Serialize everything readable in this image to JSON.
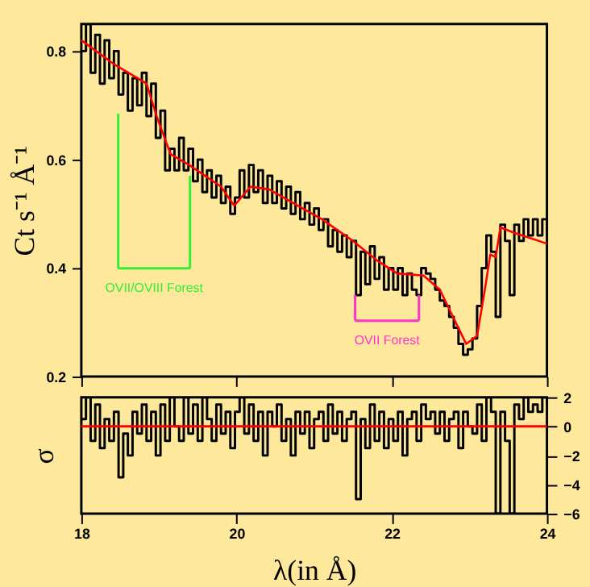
{
  "chart_data": [
    {
      "type": "line",
      "ylabel": "Ct s⁻¹ Å⁻¹",
      "xlim": [
        18,
        24
      ],
      "xticks": [
        18,
        20,
        22,
        24
      ],
      "ylim": [
        0.2,
        0.85
      ],
      "yticks": [
        0.2,
        0.4,
        0.6,
        0.8
      ],
      "tick_labels": "y",
      "grid": false,
      "series": [
        {
          "type": "step",
          "color": "#000000",
          "x": [
            18.0,
            18.06,
            18.12,
            18.18,
            18.24,
            18.3,
            18.36,
            18.42,
            18.48,
            18.54,
            18.6,
            18.66,
            18.72,
            18.78,
            18.84,
            18.9,
            18.96,
            19.02,
            19.08,
            19.14,
            19.2,
            19.26,
            19.32,
            19.38,
            19.44,
            19.5,
            19.56,
            19.62,
            19.68,
            19.74,
            19.8,
            19.86,
            19.92,
            19.98,
            20.04,
            20.1,
            20.16,
            20.22,
            20.28,
            20.34,
            20.4,
            20.46,
            20.52,
            20.58,
            20.64,
            20.7,
            20.76,
            20.82,
            20.88,
            20.94,
            21.0,
            21.06,
            21.12,
            21.18,
            21.24,
            21.3,
            21.36,
            21.42,
            21.48,
            21.54,
            21.6,
            21.66,
            21.72,
            21.78,
            21.84,
            21.9,
            21.96,
            22.02,
            22.08,
            22.14,
            22.2,
            22.26,
            22.32,
            22.38,
            22.44,
            22.5,
            22.56,
            22.62,
            22.68,
            22.74,
            22.8,
            22.86,
            22.92,
            22.98,
            23.04,
            23.1,
            23.16,
            23.22,
            23.28,
            23.34,
            23.4,
            23.46,
            23.52,
            23.58,
            23.64,
            23.7,
            23.76,
            23.82,
            23.88,
            23.94,
            24.0
          ],
          "values": [
            0.8,
            0.85,
            0.76,
            0.83,
            0.74,
            0.82,
            0.75,
            0.8,
            0.72,
            0.76,
            0.69,
            0.75,
            0.7,
            0.76,
            0.68,
            0.74,
            0.64,
            0.69,
            0.58,
            0.62,
            0.58,
            0.64,
            0.58,
            0.62,
            0.56,
            0.6,
            0.54,
            0.58,
            0.53,
            0.57,
            0.52,
            0.55,
            0.5,
            0.53,
            0.58,
            0.53,
            0.59,
            0.54,
            0.58,
            0.52,
            0.57,
            0.52,
            0.56,
            0.51,
            0.55,
            0.5,
            0.54,
            0.49,
            0.52,
            0.48,
            0.51,
            0.47,
            0.49,
            0.44,
            0.47,
            0.43,
            0.46,
            0.42,
            0.45,
            0.35,
            0.43,
            0.37,
            0.44,
            0.38,
            0.42,
            0.36,
            0.4,
            0.36,
            0.4,
            0.35,
            0.39,
            0.36,
            0.35,
            0.4,
            0.39,
            0.38,
            0.36,
            0.34,
            0.33,
            0.31,
            0.29,
            0.26,
            0.24,
            0.25,
            0.27,
            0.33,
            0.4,
            0.46,
            0.43,
            0.31,
            0.48,
            0.45,
            0.35,
            0.48,
            0.45,
            0.49,
            0.46,
            0.49,
            0.46,
            0.49,
            0.46
          ]
        },
        {
          "color": "#ff0000",
          "x": [
            18.0,
            18.43,
            18.84,
            18.98,
            19.15,
            19.39,
            19.8,
            19.97,
            20.18,
            20.42,
            21.1,
            21.5,
            21.8,
            22.07,
            22.41,
            22.62,
            22.79,
            22.96,
            23.1,
            23.2,
            23.27,
            23.34,
            23.4,
            23.58,
            24.0
          ],
          "values": [
            0.82,
            0.775,
            0.74,
            0.676,
            0.61,
            0.59,
            0.55,
            0.515,
            0.55,
            0.545,
            0.49,
            0.45,
            0.415,
            0.39,
            0.386,
            0.36,
            0.31,
            0.26,
            0.275,
            0.36,
            0.425,
            0.42,
            0.475,
            0.465,
            0.445
          ]
        }
      ],
      "annotations": [
        {
          "text": "OVII/OVIII Forest",
          "x": 19.4,
          "y": 0.57
        },
        {
          "text": "OVII Forest",
          "x": 22.35,
          "y": 0.35
        }
      ]
    },
    {
      "type": "step",
      "xlabel": "λ(in Å)",
      "ylabel": "σ",
      "xlim": [
        18,
        24
      ],
      "xticks": [
        18,
        20,
        22,
        24
      ],
      "ylim": [
        -6,
        2
      ],
      "yticks": [
        -6,
        -4,
        -2,
        0,
        2
      ],
      "grid": false,
      "series": [
        {
          "color": "#000000",
          "x": [
            18.0,
            18.06,
            18.12,
            18.18,
            18.24,
            18.3,
            18.36,
            18.42,
            18.48,
            18.54,
            18.6,
            18.66,
            18.72,
            18.78,
            18.84,
            18.9,
            18.96,
            19.02,
            19.08,
            19.14,
            19.2,
            19.26,
            19.32,
            19.38,
            19.44,
            19.5,
            19.56,
            19.62,
            19.68,
            19.74,
            19.8,
            19.86,
            19.92,
            19.98,
            20.04,
            20.1,
            20.16,
            20.22,
            20.28,
            20.34,
            20.4,
            20.46,
            20.52,
            20.58,
            20.64,
            20.7,
            20.76,
            20.82,
            20.88,
            20.94,
            21.0,
            21.06,
            21.12,
            21.18,
            21.24,
            21.3,
            21.36,
            21.42,
            21.48,
            21.54,
            21.6,
            21.66,
            21.72,
            21.78,
            21.84,
            21.9,
            21.96,
            22.02,
            22.08,
            22.14,
            22.2,
            22.26,
            22.32,
            22.38,
            22.44,
            22.5,
            22.56,
            22.62,
            22.68,
            22.74,
            22.8,
            22.86,
            22.92,
            22.98,
            23.04,
            23.1,
            23.16,
            23.22,
            23.28,
            23.34,
            23.4,
            23.46,
            23.52,
            23.58,
            23.64,
            23.7,
            23.76,
            23.82,
            23.88,
            23.94,
            24.0
          ],
          "values": [
            0.5,
            2,
            -1,
            1.5,
            -1.5,
            0.5,
            -1,
            1,
            -3.5,
            -0.5,
            -2,
            1,
            -0.5,
            1.5,
            -1,
            1,
            -2,
            1.5,
            -1,
            2,
            0,
            -1,
            2,
            -0.5,
            1.5,
            -1,
            2,
            0.5,
            -1,
            1.5,
            -0.5,
            1,
            -1.5,
            1,
            2,
            -0.5,
            1.5,
            -1,
            1,
            -2,
            1,
            0,
            1.5,
            -1,
            0.5,
            -2,
            1,
            -0.5,
            1,
            -1.5,
            0.5,
            1,
            -1,
            1.5,
            -0.5,
            1,
            -1,
            0.5,
            1,
            -5,
            0.5,
            -1.5,
            1.5,
            -1,
            1,
            -1.5,
            0.5,
            -1,
            1,
            -2,
            0.5,
            1,
            -1,
            1.5,
            0.5,
            1,
            -0.5,
            1,
            -1,
            0.5,
            1,
            -1.5,
            1,
            0,
            -0.5,
            1.5,
            -1,
            2,
            1,
            -6,
            1,
            -1,
            -6,
            1.5,
            0.5,
            2,
            1,
            1.5,
            1,
            2,
            1.5
          ]
        }
      ],
      "ref_lines": [
        {
          "axis": "y",
          "value": 0,
          "color": "#ff0000"
        }
      ]
    }
  ]
}
